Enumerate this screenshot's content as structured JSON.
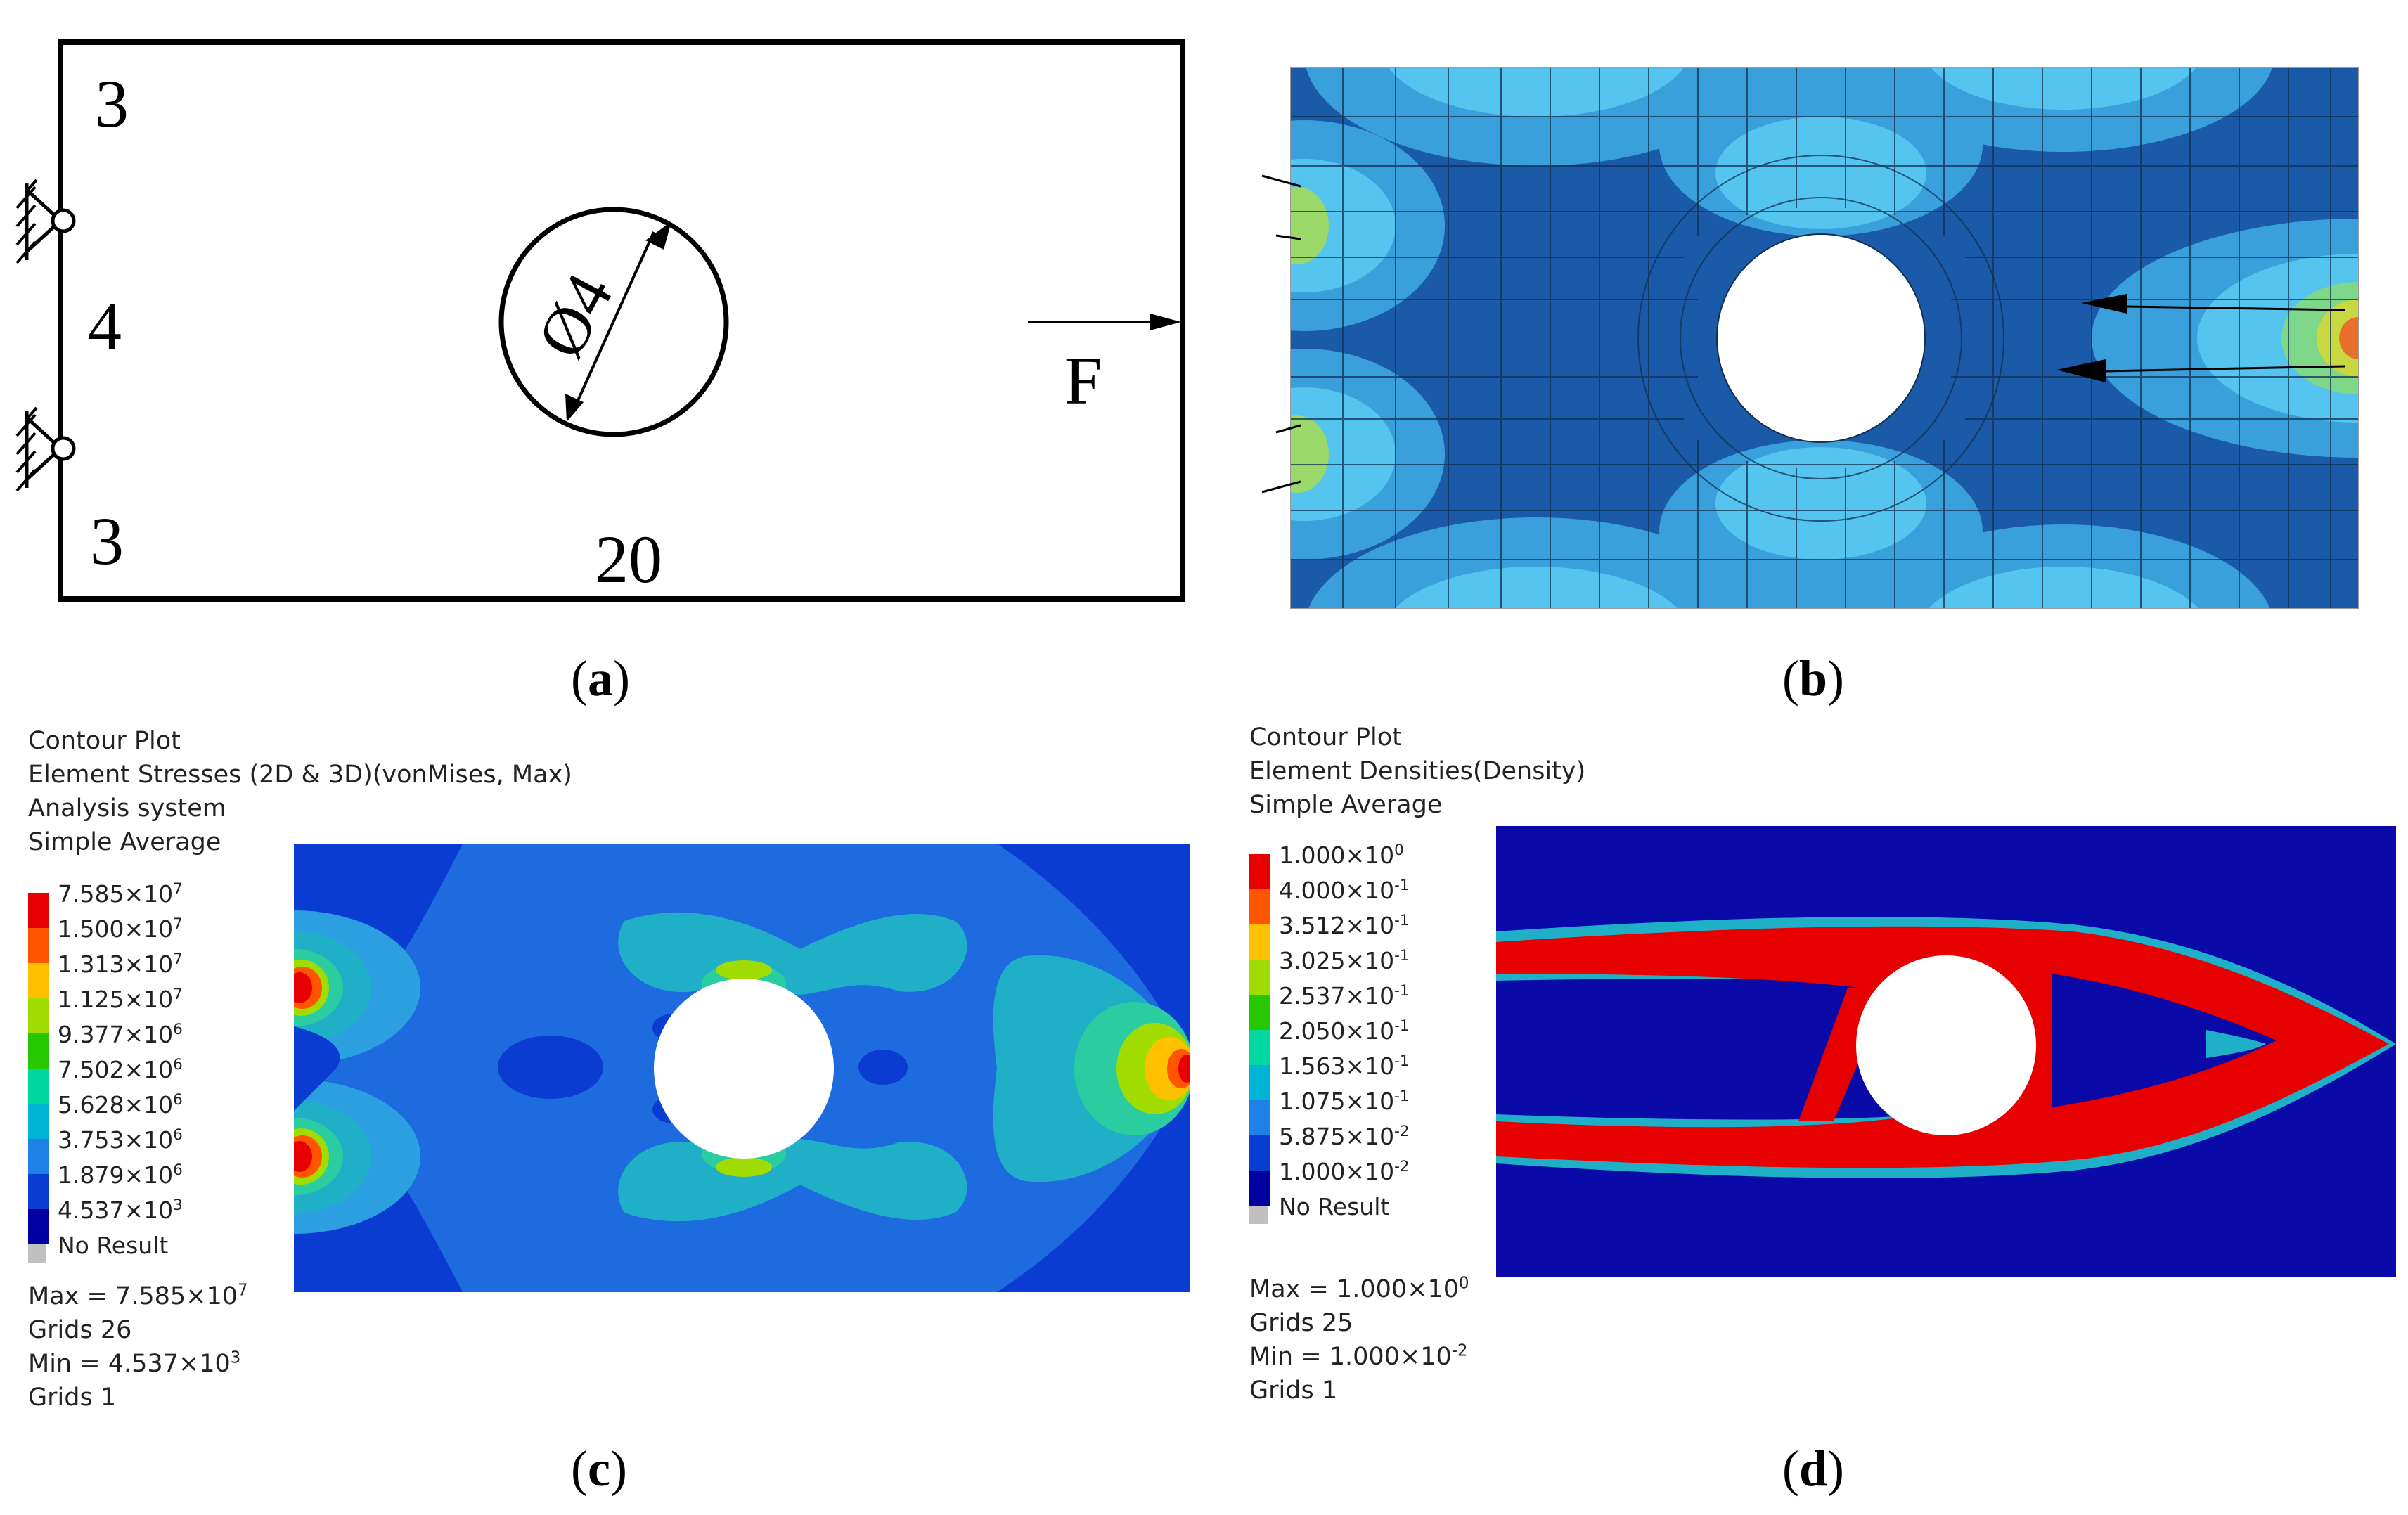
{
  "panels": {
    "a": {
      "caption": "(a)",
      "labels": {
        "top_height": "3",
        "middle_height": "4",
        "bottom_height": "3",
        "length": "20",
        "hole_diameter": "Ø4",
        "force": "F"
      }
    },
    "b": {
      "caption": "(b)"
    },
    "c": {
      "caption": "(c)",
      "header": [
        "Contour Plot",
        "Element Stresses (2D & 3D)(vonMises, Max)",
        "Analysis system",
        "Simple Average"
      ],
      "legend_colors": [
        "#e60000",
        "#ff5500",
        "#ffc000",
        "#a0dc00",
        "#28c800",
        "#00d8a0",
        "#00b4d8",
        "#1e82e6",
        "#0a3cd2",
        "#0000a0"
      ],
      "legend_levels": [
        "7.585×10^7",
        "1.500×10^7",
        "1.313×10^7",
        "1.125×10^7",
        "9.377×10^6",
        "7.502×10^6",
        "5.628×10^6",
        "3.753×10^6",
        "1.879×10^6",
        "4.537×10^3"
      ],
      "no_result": "No Result",
      "max_label": "Max = ",
      "max_value": "7.585×10^7",
      "max_grids": "Grids 26",
      "min_label": "Min = ",
      "min_value": "4.537×10^3",
      "min_grids": "Grids 1"
    },
    "d": {
      "caption": "(d)",
      "header": [
        "Contour Plot",
        "Element Densities(Density)",
        "Simple Average"
      ],
      "legend_colors": [
        "#e60000",
        "#ff5500",
        "#ffc000",
        "#a0dc00",
        "#28c800",
        "#00d8a0",
        "#00b4d8",
        "#1e82e6",
        "#0a3cd2",
        "#0000a0"
      ],
      "legend_levels": [
        "1.000×10^0",
        "4.000×10^-1",
        "3.512×10^-1",
        "3.025×10^-1",
        "2.537×10^-1",
        "2.050×10^-1",
        "1.563×10^-1",
        "1.075×10^-1",
        "5.875×10^-2",
        "1.000×10^-2"
      ],
      "no_result": "No Result",
      "max_label": "Max = ",
      "max_value": "1.000×10^0",
      "max_grids": "Grids 25",
      "min_label": "Min = ",
      "min_value": "1.000×10^-2",
      "min_grids": "Grids 1"
    }
  }
}
